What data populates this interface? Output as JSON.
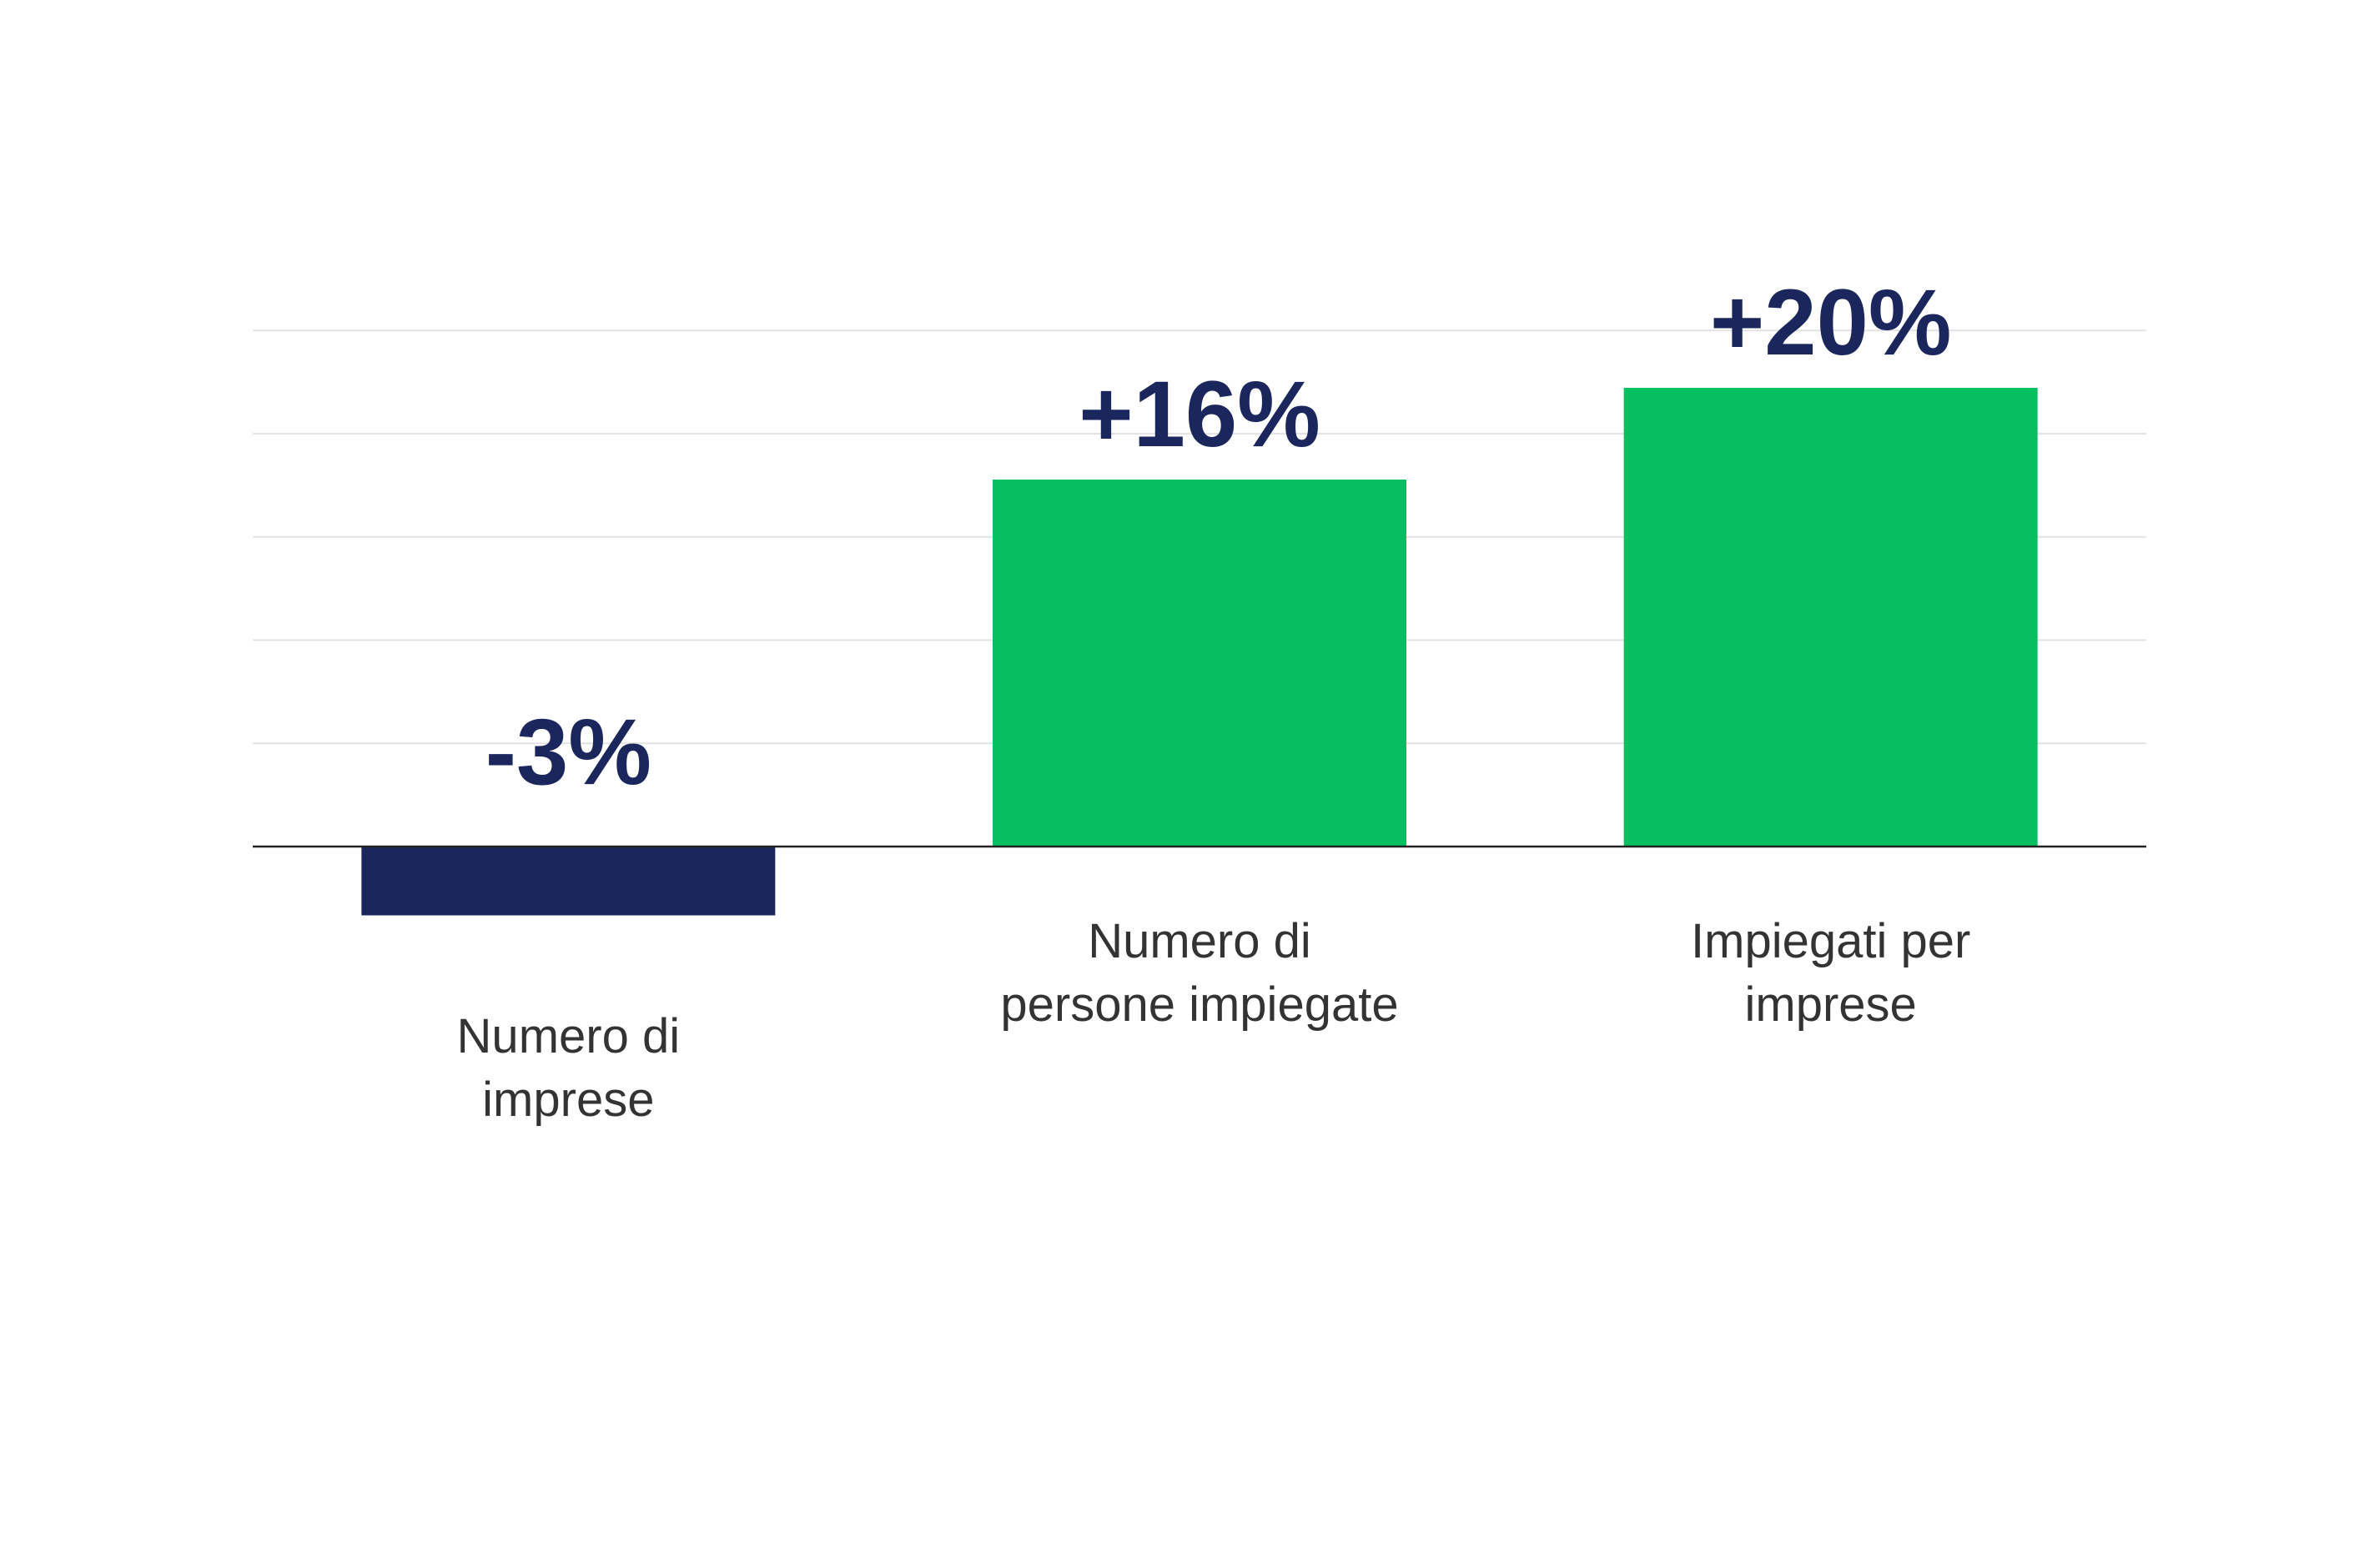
{
  "chart_data": {
    "type": "bar",
    "title": "",
    "xlabel": "",
    "ylabel": "",
    "categories": [
      [
        "Numero di",
        "imprese"
      ],
      [
        "Numero di",
        "persone impiegate"
      ],
      [
        "Impiegati per",
        "imprese"
      ]
    ],
    "values": [
      -3,
      16,
      20
    ],
    "data_labels": [
      "-3%",
      "+16%",
      "+20%"
    ],
    "ylim": [
      -5,
      22.5
    ],
    "gridlines": [
      4.5,
      9,
      13.5,
      18,
      22.5
    ],
    "grid": true,
    "colors": {
      "positive": "#05bf60",
      "negative": "#1b275c",
      "label": "#1b275c",
      "category_text": "#333333",
      "grid": "#e2e2e2",
      "axis": "#222222"
    }
  }
}
